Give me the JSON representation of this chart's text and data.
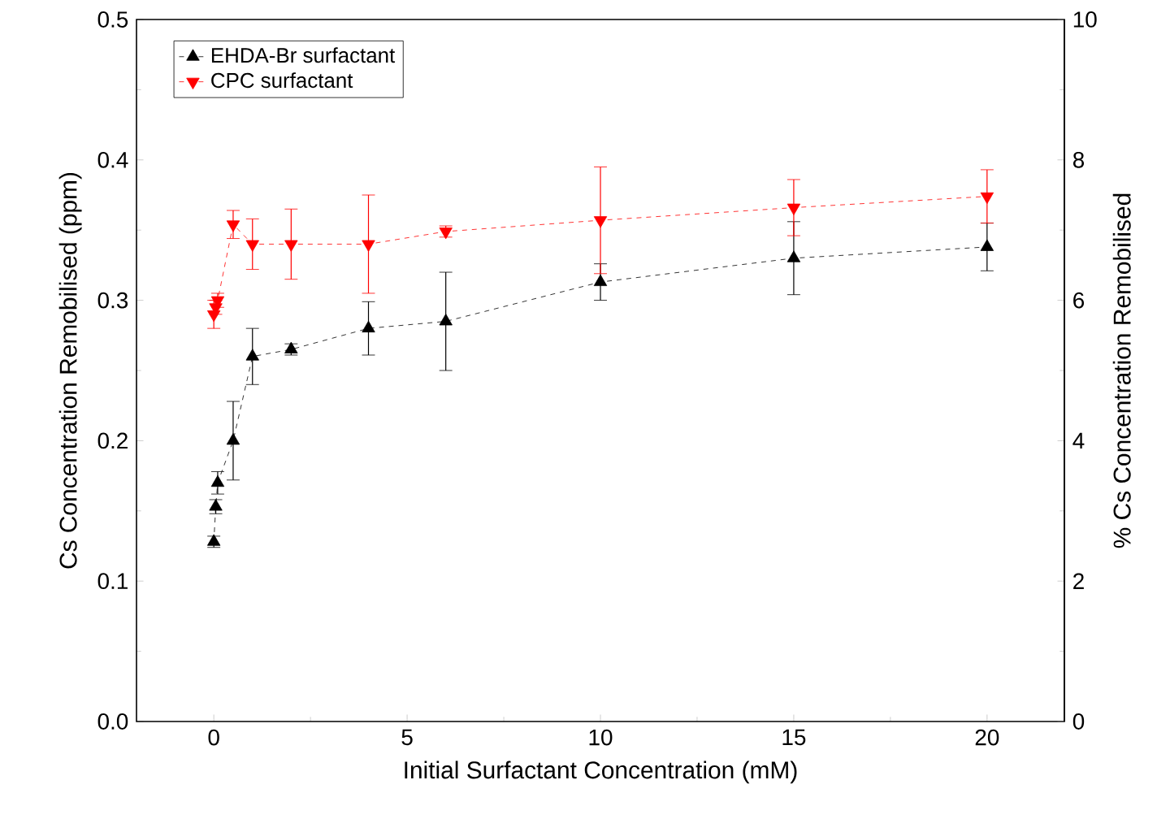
{
  "chart_data": {
    "type": "line",
    "xlabel": "Initial Surfactant Concentration (mM)",
    "ylabel": "Cs Concentration Remobilised (ppm)",
    "y2label": "% Cs Concentration Remobilised",
    "x": [
      0,
      0.05,
      0.1,
      0.5,
      1,
      2,
      4,
      6,
      10,
      15,
      20
    ],
    "series": [
      {
        "name": "EHDA-Br surfactant",
        "color": "#000000",
        "marker": "triangle",
        "values": [
          0.128,
          0.153,
          0.17,
          0.2,
          0.26,
          0.265,
          0.28,
          0.285,
          0.313,
          0.33,
          0.338
        ],
        "errors": [
          0.004,
          0.005,
          0.008,
          0.028,
          0.02,
          0.004,
          0.019,
          0.035,
          0.013,
          0.026,
          0.017
        ]
      },
      {
        "name": "CPC surfactant",
        "color": "#ff0000",
        "marker": "triangle-down",
        "values": [
          0.29,
          0.295,
          0.3,
          0.354,
          0.34,
          0.34,
          0.34,
          0.349,
          0.357,
          0.366,
          0.374
        ],
        "errors": [
          0.01,
          0.005,
          0.005,
          0.01,
          0.018,
          0.025,
          0.035,
          0.004,
          0.038,
          0.02,
          0.019
        ]
      }
    ],
    "line_style": "dashed",
    "xlim": [
      -2,
      22
    ],
    "xticks": [
      0,
      5,
      10,
      15,
      20
    ],
    "ylim": [
      0,
      0.5
    ],
    "yticks": [
      {
        "value": 0,
        "label": "0.0"
      },
      0.1,
      0.2,
      0.3,
      0.4,
      0.5
    ],
    "y2lim": [
      0,
      10
    ],
    "y2ticks": [
      0,
      2,
      4,
      6,
      8,
      10
    ],
    "grid": false,
    "legend": "top left"
  }
}
